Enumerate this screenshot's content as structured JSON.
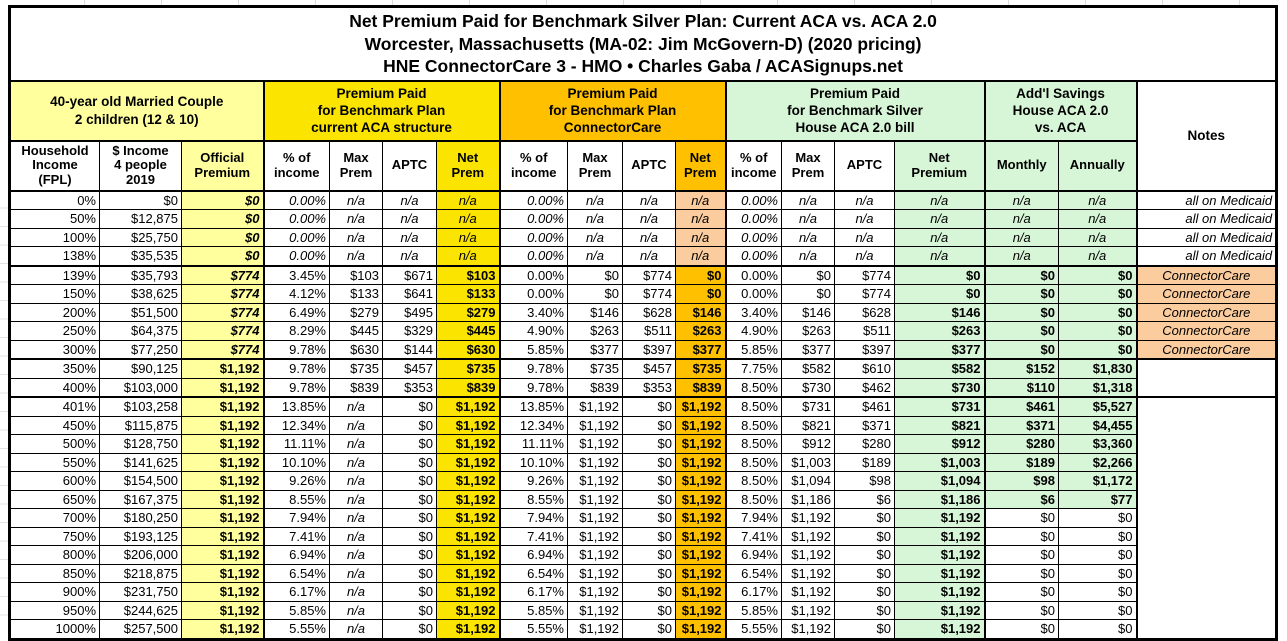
{
  "colors": {
    "paleYellow": "#FFFF9E",
    "yellow": "#FBE400",
    "orange": "#FFC000",
    "peach": "#FBCC9D",
    "green": "#D7F5D7"
  },
  "chart_data": {
    "type": "table",
    "title": {
      "line1": "Net Premium Paid for Benchmark Silver Plan: Current ACA vs. ACA 2.0",
      "line2": "Worcester, Massachusetts (MA-02: Jim McGovern-D) (2020 pricing)",
      "line3": "HNE ConnectorCare 3 - HMO • Charles Gaba / ACASignups.net"
    },
    "groups": [
      {
        "label": "40-year old Married Couple\n2 children (12 & 10)",
        "span": 3
      },
      {
        "label": "Premium Paid\nfor Benchmark Plan\ncurrent ACA structure",
        "span": 4
      },
      {
        "label": "Premium Paid\nfor Benchmark Plan\nConnectorCare",
        "span": 4
      },
      {
        "label": "Premium Paid\nfor Benchmark Silver\nHouse ACA 2.0 bill",
        "span": 4
      },
      {
        "label": "Add'l Savings\nHouse ACA 2.0\nvs. ACA",
        "span": 2
      },
      {
        "label": "Notes",
        "span": 1,
        "rowspan": 2
      }
    ],
    "columns": [
      {
        "label": "Household\nIncome\n(FPL)"
      },
      {
        "label": "$ Income\n4 people\n2019"
      },
      {
        "label": "Official\nPremium"
      },
      {
        "label": "% of\nincome"
      },
      {
        "label": "Max\nPrem"
      },
      {
        "label": "APTC"
      },
      {
        "label": "Net\nPrem"
      },
      {
        "label": "% of\nincome"
      },
      {
        "label": "Max\nPrem"
      },
      {
        "label": "APTC"
      },
      {
        "label": "Net\nPrem"
      },
      {
        "label": "% of\nincome"
      },
      {
        "label": "Max\nPrem"
      },
      {
        "label": "APTC"
      },
      {
        "label": "Net\nPremium"
      },
      {
        "label": "Monthly"
      },
      {
        "label": "Annually"
      }
    ],
    "rows": [
      {
        "cells": [
          "0%",
          "$0",
          "$0",
          "0.00%",
          "n/a",
          "n/a",
          "n/a",
          "0.00%",
          "n/a",
          "n/a",
          "n/a",
          "0.00%",
          "n/a",
          "n/a",
          "n/a",
          "n/a",
          "n/a",
          "all on Medicaid"
        ]
      },
      {
        "cells": [
          "50%",
          "$12,875",
          "$0",
          "0.00%",
          "n/a",
          "n/a",
          "n/a",
          "0.00%",
          "n/a",
          "n/a",
          "n/a",
          "0.00%",
          "n/a",
          "n/a",
          "n/a",
          "n/a",
          "n/a",
          "all on Medicaid"
        ]
      },
      {
        "cells": [
          "100%",
          "$25,750",
          "$0",
          "0.00%",
          "n/a",
          "n/a",
          "n/a",
          "0.00%",
          "n/a",
          "n/a",
          "n/a",
          "0.00%",
          "n/a",
          "n/a",
          "n/a",
          "n/a",
          "n/a",
          "all on Medicaid"
        ]
      },
      {
        "cells": [
          "138%",
          "$35,535",
          "$0",
          "0.00%",
          "n/a",
          "n/a",
          "n/a",
          "0.00%",
          "n/a",
          "n/a",
          "n/a",
          "0.00%",
          "n/a",
          "n/a",
          "n/a",
          "n/a",
          "n/a",
          "all on Medicaid"
        ]
      },
      {
        "cells": [
          "139%",
          "$35,793",
          "$774",
          "3.45%",
          "$103",
          "$671",
          "$103",
          "0.00%",
          "$0",
          "$774",
          "$0",
          "0.00%",
          "$0",
          "$774",
          "$0",
          "$0",
          "$0",
          "ConnectorCare"
        ]
      },
      {
        "cells": [
          "150%",
          "$38,625",
          "$774",
          "4.12%",
          "$133",
          "$641",
          "$133",
          "0.00%",
          "$0",
          "$774",
          "$0",
          "0.00%",
          "$0",
          "$774",
          "$0",
          "$0",
          "$0",
          "ConnectorCare"
        ]
      },
      {
        "cells": [
          "200%",
          "$51,500",
          "$774",
          "6.49%",
          "$279",
          "$495",
          "$279",
          "3.40%",
          "$146",
          "$628",
          "$146",
          "3.40%",
          "$146",
          "$628",
          "$146",
          "$0",
          "$0",
          "ConnectorCare"
        ]
      },
      {
        "cells": [
          "250%",
          "$64,375",
          "$774",
          "8.29%",
          "$445",
          "$329",
          "$445",
          "4.90%",
          "$263",
          "$511",
          "$263",
          "4.90%",
          "$263",
          "$511",
          "$263",
          "$0",
          "$0",
          "ConnectorCare"
        ]
      },
      {
        "cells": [
          "300%",
          "$77,250",
          "$774",
          "9.78%",
          "$630",
          "$144",
          "$630",
          "5.85%",
          "$377",
          "$397",
          "$377",
          "5.85%",
          "$377",
          "$397",
          "$377",
          "$0",
          "$0",
          "ConnectorCare"
        ]
      },
      {
        "cells": [
          "350%",
          "$90,125",
          "$1,192",
          "9.78%",
          "$735",
          "$457",
          "$735",
          "9.78%",
          "$735",
          "$457",
          "$735",
          "7.75%",
          "$582",
          "$610",
          "$582",
          "$152",
          "$1,830",
          ""
        ]
      },
      {
        "cells": [
          "400%",
          "$103,000",
          "$1,192",
          "9.78%",
          "$839",
          "$353",
          "$839",
          "9.78%",
          "$839",
          "$353",
          "$839",
          "8.50%",
          "$730",
          "$462",
          "$730",
          "$110",
          "$1,318",
          ""
        ]
      },
      {
        "cells": [
          "401%",
          "$103,258",
          "$1,192",
          "13.85%",
          "n/a",
          "$0",
          "$1,192",
          "13.85%",
          "$1,192",
          "$0",
          "$1,192",
          "8.50%",
          "$731",
          "$461",
          "$731",
          "$461",
          "$5,527",
          ""
        ]
      },
      {
        "cells": [
          "450%",
          "$115,875",
          "$1,192",
          "12.34%",
          "n/a",
          "$0",
          "$1,192",
          "12.34%",
          "$1,192",
          "$0",
          "$1,192",
          "8.50%",
          "$821",
          "$371",
          "$821",
          "$371",
          "$4,455",
          ""
        ]
      },
      {
        "cells": [
          "500%",
          "$128,750",
          "$1,192",
          "11.11%",
          "n/a",
          "$0",
          "$1,192",
          "11.11%",
          "$1,192",
          "$0",
          "$1,192",
          "8.50%",
          "$912",
          "$280",
          "$912",
          "$280",
          "$3,360",
          ""
        ]
      },
      {
        "cells": [
          "550%",
          "$141,625",
          "$1,192",
          "10.10%",
          "n/a",
          "$0",
          "$1,192",
          "10.10%",
          "$1,192",
          "$0",
          "$1,192",
          "8.50%",
          "$1,003",
          "$189",
          "$1,003",
          "$189",
          "$2,266",
          ""
        ]
      },
      {
        "cells": [
          "600%",
          "$154,500",
          "$1,192",
          "9.26%",
          "n/a",
          "$0",
          "$1,192",
          "9.26%",
          "$1,192",
          "$0",
          "$1,192",
          "8.50%",
          "$1,094",
          "$98",
          "$1,094",
          "$98",
          "$1,172",
          ""
        ]
      },
      {
        "cells": [
          "650%",
          "$167,375",
          "$1,192",
          "8.55%",
          "n/a",
          "$0",
          "$1,192",
          "8.55%",
          "$1,192",
          "$0",
          "$1,192",
          "8.50%",
          "$1,186",
          "$6",
          "$1,186",
          "$6",
          "$77",
          ""
        ]
      },
      {
        "cells": [
          "700%",
          "$180,250",
          "$1,192",
          "7.94%",
          "n/a",
          "$0",
          "$1,192",
          "7.94%",
          "$1,192",
          "$0",
          "$1,192",
          "7.94%",
          "$1,192",
          "$0",
          "$1,192",
          "$0",
          "$0",
          ""
        ]
      },
      {
        "cells": [
          "750%",
          "$193,125",
          "$1,192",
          "7.41%",
          "n/a",
          "$0",
          "$1,192",
          "7.41%",
          "$1,192",
          "$0",
          "$1,192",
          "7.41%",
          "$1,192",
          "$0",
          "$1,192",
          "$0",
          "$0",
          ""
        ]
      },
      {
        "cells": [
          "800%",
          "$206,000",
          "$1,192",
          "6.94%",
          "n/a",
          "$0",
          "$1,192",
          "6.94%",
          "$1,192",
          "$0",
          "$1,192",
          "6.94%",
          "$1,192",
          "$0",
          "$1,192",
          "$0",
          "$0",
          ""
        ]
      },
      {
        "cells": [
          "850%",
          "$218,875",
          "$1,192",
          "6.54%",
          "n/a",
          "$0",
          "$1,192",
          "6.54%",
          "$1,192",
          "$0",
          "$1,192",
          "6.54%",
          "$1,192",
          "$0",
          "$1,192",
          "$0",
          "$0",
          ""
        ]
      },
      {
        "cells": [
          "900%",
          "$231,750",
          "$1,192",
          "6.17%",
          "n/a",
          "$0",
          "$1,192",
          "6.17%",
          "$1,192",
          "$0",
          "$1,192",
          "6.17%",
          "$1,192",
          "$0",
          "$1,192",
          "$0",
          "$0",
          ""
        ]
      },
      {
        "cells": [
          "950%",
          "$244,625",
          "$1,192",
          "5.85%",
          "n/a",
          "$0",
          "$1,192",
          "5.85%",
          "$1,192",
          "$0",
          "$1,192",
          "5.85%",
          "$1,192",
          "$0",
          "$1,192",
          "$0",
          "$0",
          ""
        ]
      },
      {
        "cells": [
          "1000%",
          "$257,500",
          "$1,192",
          "5.55%",
          "n/a",
          "$0",
          "$1,192",
          "5.55%",
          "$1,192",
          "$0",
          "$1,192",
          "5.55%",
          "$1,192",
          "$0",
          "$1,192",
          "$0",
          "$0",
          ""
        ]
      }
    ]
  }
}
